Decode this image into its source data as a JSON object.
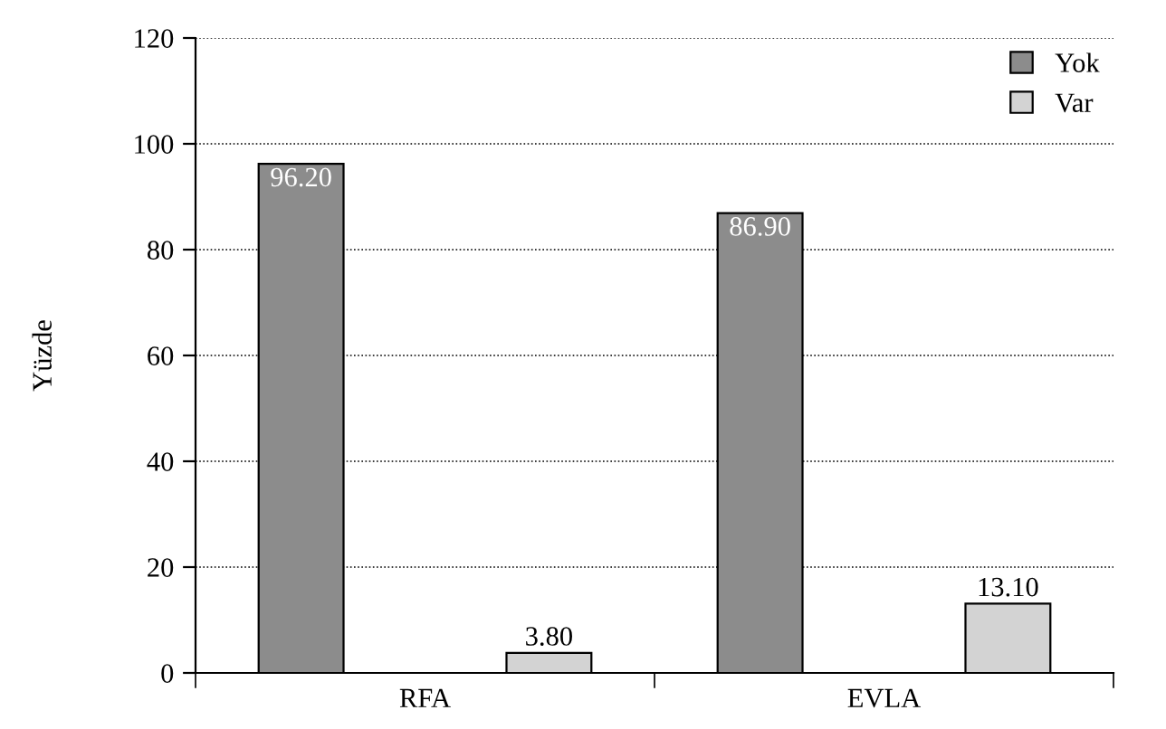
{
  "chart_data": {
    "type": "bar",
    "ylabel": "Yüzde",
    "categories": [
      "RFA",
      "EVLA"
    ],
    "series": [
      {
        "name": "Yok",
        "color": "#8c8c8c",
        "values": [
          96.2,
          86.9
        ],
        "value_labels": [
          "96.20",
          "86.90"
        ]
      },
      {
        "name": "Var",
        "color": "#d3d3d3",
        "values": [
          3.8,
          13.1
        ],
        "value_labels": [
          "3.80",
          "13.10"
        ]
      }
    ],
    "ylim": [
      0,
      120
    ],
    "yticks": [
      0,
      20,
      40,
      60,
      80,
      100,
      120
    ],
    "grid": "y",
    "legend": "top right"
  }
}
